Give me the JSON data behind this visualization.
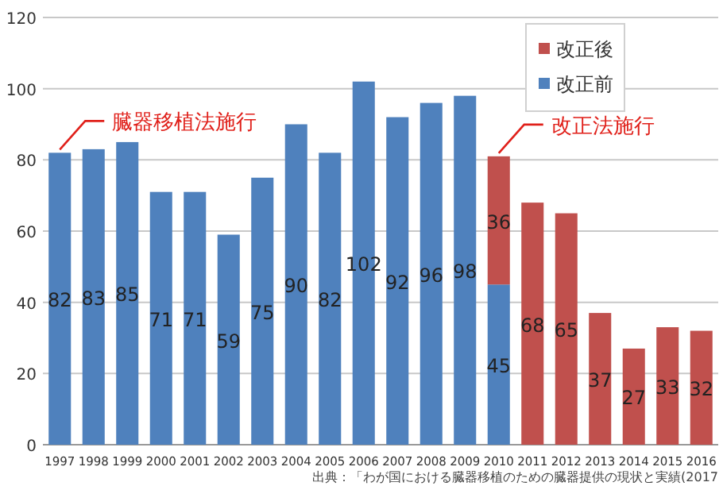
{
  "chart_data": {
    "type": "bar",
    "stacked": true,
    "categories": [
      "1997",
      "1998",
      "1999",
      "2000",
      "2001",
      "2002",
      "2003",
      "2004",
      "2005",
      "2006",
      "2007",
      "2008",
      "2009",
      "2010",
      "2011",
      "2012",
      "2013",
      "2014",
      "2015",
      "2016"
    ],
    "series": [
      {
        "name": "改正前",
        "color": "#4f81bd",
        "values": [
          82,
          83,
          85,
          71,
          71,
          59,
          75,
          90,
          82,
          102,
          92,
          96,
          98,
          45,
          null,
          null,
          null,
          null,
          null,
          null
        ]
      },
      {
        "name": "改正後",
        "color": "#c0504d",
        "values": [
          null,
          null,
          null,
          null,
          null,
          null,
          null,
          null,
          null,
          null,
          null,
          null,
          null,
          36,
          68,
          65,
          37,
          27,
          33,
          32
        ]
      }
    ],
    "ylim": [
      0,
      120
    ],
    "yticks": [
      0,
      20,
      40,
      60,
      80,
      100,
      120
    ],
    "grid": "y",
    "legend": "top right",
    "data_labels": true,
    "annotations": [
      {
        "text": "臓器移植法施行",
        "x": "1997",
        "y": 82
      },
      {
        "text": "改正法施行",
        "x": "2010",
        "y": 81
      },
      "出典：「わが国における臓器移植のための臓器提供の現状と実績(2017"
    ]
  }
}
